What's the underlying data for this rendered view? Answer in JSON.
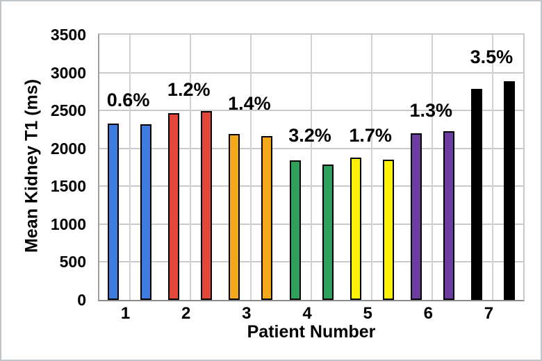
{
  "figure": {
    "background": "#ffffff",
    "frame_color": "#bfc5c9",
    "text_color": "#000000"
  },
  "chart_data": {
    "type": "bar",
    "title": "",
    "xlabel": "Patient Number",
    "ylabel": "Mean Kidney T1 (ms)",
    "ylim": [
      0,
      3500
    ],
    "ytick_step": 500,
    "yticks": [
      "0",
      "500",
      "1000",
      "1500",
      "2000",
      "2500",
      "3000",
      "3500"
    ],
    "categories": [
      "1",
      "2",
      "3",
      "4",
      "5",
      "6",
      "7"
    ],
    "grid": "horizontal-500ms-and-vertical-at-category-centers",
    "legend": "none",
    "bar_outline_color": "#000000",
    "gridline_color": "#c9c9c9",
    "axis_line_color": "#8b8b8b",
    "groups": [
      {
        "patient": "1",
        "color": "#3e7ce0",
        "values": [
          2330,
          2316
        ],
        "diff_label": "0.6%",
        "label_value": 2640
      },
      {
        "patient": "2",
        "color": "#e2473a",
        "values": [
          2462,
          2492
        ],
        "diff_label": "1.2%",
        "label_value": 2780
      },
      {
        "patient": "3",
        "color": "#f4a81c",
        "values": [
          2192,
          2161
        ],
        "diff_label": "1.4%",
        "label_value": 2590
      },
      {
        "patient": "4",
        "color": "#2ea05c",
        "values": [
          1843,
          1786
        ],
        "diff_label": "3.2%",
        "label_value": 2175
      },
      {
        "patient": "5",
        "color": "#fdf300",
        "values": [
          1880,
          1848
        ],
        "diff_label": "1.7%",
        "label_value": 2175
      },
      {
        "patient": "6",
        "color": "#6c3d9e",
        "values": [
          2199,
          2228
        ],
        "diff_label": "1.3%",
        "label_value": 2505
      },
      {
        "patient": "7",
        "color": "#000000",
        "values": [
          2788,
          2886
        ],
        "diff_label": "3.5%",
        "label_value": 3210
      }
    ]
  }
}
